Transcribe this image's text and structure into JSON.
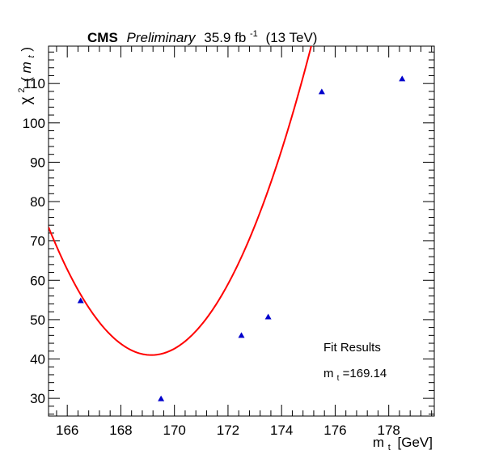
{
  "header": {
    "experiment": "CMS",
    "status": "Preliminary",
    "luminosity": "35.9 fb",
    "lumi_exponent": "-1",
    "energy": "(13 TeV)"
  },
  "chart_data": {
    "type": "scatter",
    "xlabel_main": "m",
    "xlabel_sub": "t",
    "xlabel_unit": "[GeV]",
    "ylabel_symbol": "χ",
    "ylabel_sup": "2",
    "ylabel_arg_open": "(",
    "ylabel_arg": "m",
    "ylabel_arg_sub": "t",
    "ylabel_arg_close": ")",
    "xlim": [
      165.3,
      179.7
    ],
    "ylim": [
      25.5,
      119.5
    ],
    "xticks": [
      166,
      168,
      170,
      172,
      174,
      176,
      178
    ],
    "yticks": [
      30,
      40,
      50,
      60,
      70,
      80,
      90,
      100,
      110
    ],
    "grid": false,
    "points": {
      "x": [
        166.5,
        169.5,
        172.5,
        173.5,
        175.5,
        178.5
      ],
      "y": [
        54.8,
        29.9,
        46.0,
        50.7,
        107.9,
        111.2
      ],
      "color": "#0000cc",
      "marker": "triangle"
    },
    "fit": {
      "type": "parabola",
      "vertex_x": 169.14,
      "vertex_y": 41.0,
      "curvature": 2.205,
      "color": "#ff0000"
    },
    "annotations": {
      "fit_title": "Fit Results",
      "fit_result_label": "m",
      "fit_result_sub": "t",
      "fit_result_value": "=169.14"
    }
  }
}
